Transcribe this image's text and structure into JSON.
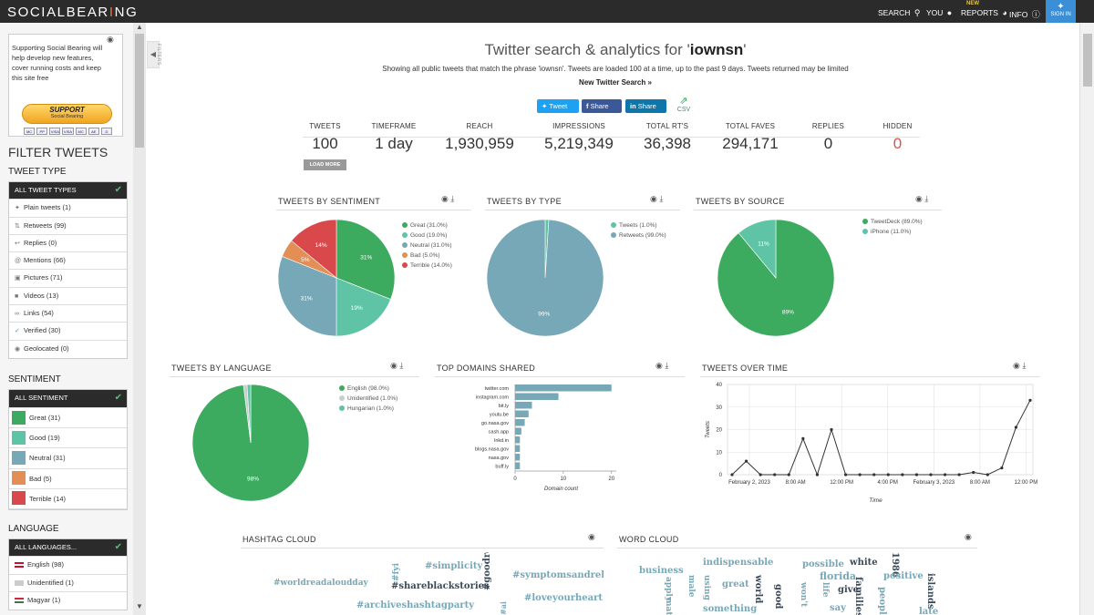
{
  "topbar": {
    "logo_pre": "SOCIALBEAR",
    "logo_accent": "I",
    "logo_post": "NG",
    "search": "SEARCH",
    "you": "YOU",
    "reports": "REPORTS",
    "reports_badge": "NEW",
    "info": "INFO",
    "signin": "SIGN IN"
  },
  "sidebar": {
    "support_text": "Supporting Social Bearing will help develop new features, cover running costs and keep this site free",
    "support_btn": "SUPPORT",
    "support_sub": "Social Bearing",
    "cards": [
      "MC",
      "PP",
      "VISA",
      "VISA",
      "MC",
      "AE",
      "D"
    ],
    "filter_title": "FILTER TWEETS",
    "tweet_type_title": "TWEET TYPE",
    "tweet_types": [
      {
        "label": "ALL TWEET TYPES",
        "icon": "check"
      },
      {
        "label": "Plain tweets (1)",
        "icon": "bird"
      },
      {
        "label": "Retweets (99)",
        "icon": "retweet"
      },
      {
        "label": "Replies (0)",
        "icon": "reply"
      },
      {
        "label": "Mentions (66)",
        "icon": "at"
      },
      {
        "label": "Pictures (71)",
        "icon": "picture"
      },
      {
        "label": "Videos (13)",
        "icon": "video"
      },
      {
        "label": "Links (54)",
        "icon": "link"
      },
      {
        "label": "Verified (30)",
        "icon": "verified"
      },
      {
        "label": "Geolocated (0)",
        "icon": "pin"
      }
    ],
    "sentiment_title": "SENTIMENT",
    "sentiments": [
      {
        "label": "ALL SENTIMENT"
      },
      {
        "label": "Great (31)",
        "color": "#3cab5f"
      },
      {
        "label": "Good (19)",
        "color": "#5fc4a6"
      },
      {
        "label": "Neutral (31)",
        "color": "#77a8b8"
      },
      {
        "label": "Bad (5)",
        "color": "#e38e55"
      },
      {
        "label": "Terrible (14)",
        "color": "#d9484a"
      }
    ],
    "language_title": "LANGUAGE",
    "languages": [
      {
        "label": "ALL LANGUAGES..."
      },
      {
        "label": "English (98)"
      },
      {
        "label": "Unidentified (1)"
      },
      {
        "label": "Magyar (1)"
      }
    ],
    "filters_tab": "FILTERS"
  },
  "header": {
    "title_pre": "Twitter search & analytics for '",
    "query": "iownsn",
    "title_post": "'",
    "description": "Showing all public tweets that match the phrase 'iownsn'. Tweets are loaded 100 at a time, up to the past 9 days. Tweets returned may be limited",
    "new_search": "New Twitter Search »",
    "share_tweet": "Tweet",
    "share_fb": "Share",
    "share_li": "Share",
    "csv": "CSV"
  },
  "stats": [
    {
      "label": "TWEETS",
      "value": "100"
    },
    {
      "label": "TIMEFRAME",
      "value": "1 day"
    },
    {
      "label": "REACH",
      "value": "1,930,959"
    },
    {
      "label": "IMPRESSIONS",
      "value": "5,219,349"
    },
    {
      "label": "TOTAL RT'S",
      "value": "36,398"
    },
    {
      "label": "TOTAL FAVES",
      "value": "294,171"
    },
    {
      "label": "REPLIES",
      "value": "0"
    },
    {
      "label": "HIDDEN",
      "value": "0"
    }
  ],
  "load_more": "LOAD MORE",
  "panels": {
    "sentiment": "TWEETS BY SENTIMENT",
    "type": "TWEETS BY TYPE",
    "source": "TWEETS BY SOURCE",
    "language": "TWEETS BY LANGUAGE",
    "domains": "TOP DOMAINS SHARED",
    "time": "TWEETS OVER TIME",
    "hashtag": "HASHTAG CLOUD",
    "word": "WORD CLOUD"
  },
  "chart_data": [
    {
      "type": "pie",
      "title": "TWEETS BY SENTIMENT",
      "labels": [
        "Great",
        "Good",
        "Neutral",
        "Bad",
        "Terrible"
      ],
      "values": [
        31,
        19,
        31,
        5,
        14
      ],
      "legend": [
        "Great (31.0%)",
        "Good (19.0%)",
        "Neutral (31.0%)",
        "Bad (5.0%)",
        "Terrible (14.0%)"
      ],
      "slice_labels": [
        "31%",
        "19%",
        "31%",
        "5%",
        "14%"
      ],
      "colors": [
        "#3cab5f",
        "#5fc4a6",
        "#77a8b8",
        "#e38e55",
        "#d9484a"
      ]
    },
    {
      "type": "pie",
      "title": "TWEETS BY TYPE",
      "labels": [
        "Tweets",
        "Retweets"
      ],
      "values": [
        1,
        99
      ],
      "legend": [
        "Tweets (1.0%)",
        "Retweets (99.0%)"
      ],
      "slice_labels": [
        "",
        "99%"
      ],
      "colors": [
        "#5fc4a6",
        "#77a8b8"
      ]
    },
    {
      "type": "pie",
      "title": "TWEETS BY SOURCE",
      "labels": [
        "TweetDeck",
        "iPhone"
      ],
      "values": [
        89,
        11
      ],
      "legend": [
        "TweetDeck (89.0%)",
        "iPhone (11.0%)"
      ],
      "slice_labels": [
        "89%",
        "11%"
      ],
      "colors": [
        "#3cab5f",
        "#5fc4a6"
      ]
    },
    {
      "type": "pie",
      "title": "TWEETS BY LANGUAGE",
      "labels": [
        "English",
        "Unidentified",
        "Hungarian"
      ],
      "values": [
        98,
        1,
        1
      ],
      "legend": [
        "English (98.0%)",
        "Unidentified (1.0%)",
        "Hungarian (1.0%)"
      ],
      "slice_labels": [
        "98%",
        "",
        ""
      ],
      "colors": [
        "#3cab5f",
        "#cccccc",
        "#5fc4a6"
      ]
    },
    {
      "type": "bar",
      "title": "TOP DOMAINS SHARED",
      "orientation": "horizontal",
      "categories": [
        "twitter.com",
        "instagram.com",
        "bit.ly",
        "youtu.be",
        "go.nasa.gov",
        "cash.app",
        "lnkd.in",
        "blogs.nasa.gov",
        "nasa.gov",
        "buff.ly"
      ],
      "values": [
        20,
        9,
        3.5,
        2.8,
        2,
        1.3,
        1,
        1,
        1,
        1
      ],
      "xlabel": "Domain count",
      "xticks": [
        0,
        10,
        20
      ],
      "xlim": [
        0,
        21
      ],
      "color": "#77a8b8"
    },
    {
      "type": "line",
      "title": "TWEETS OVER TIME",
      "xlabel": "Time",
      "ylabel": "Tweets",
      "ylim": [
        0,
        40
      ],
      "yticks": [
        0,
        10,
        20,
        30,
        40
      ],
      "xtick_labels": [
        "February 2, 2023",
        "8:00 AM",
        "12:00 PM",
        "4:00 PM",
        "February 3, 2023",
        "8:00 AM",
        "12:00 PM"
      ],
      "values": [
        0,
        6,
        0,
        0,
        0,
        16,
        0,
        20,
        0,
        0,
        0,
        0,
        0,
        0,
        0,
        0,
        0,
        1,
        0,
        3,
        21,
        33
      ],
      "color": "#333333"
    }
  ],
  "hashtag_cloud": [
    {
      "text": "#simplicity",
      "color": "#77a8b8",
      "size": 10,
      "rot": 0
    },
    {
      "text": "#goodreads",
      "color": "#3a4a5a",
      "size": 10,
      "rot": -90
    },
    {
      "text": "#fyi",
      "color": "#77a8b8",
      "size": 9,
      "rot": -90
    },
    {
      "text": "#symptomsandrelief",
      "color": "#77a8b8",
      "size": 10,
      "rot": 0
    },
    {
      "text": "#worldreadaloudday",
      "color": "#77a8b8",
      "size": 9,
      "rot": 0
    },
    {
      "text": "#shareblackstories",
      "color": "#3a4a5a",
      "size": 10,
      "rot": 0
    },
    {
      "text": "#loveyourheart",
      "color": "#77a8b8",
      "size": 10,
      "rot": 0
    },
    {
      "text": "#archiveshashtagparty",
      "color": "#77a8b8",
      "size": 10,
      "rot": 0
    },
    {
      "text": "#ai",
      "color": "#77a8b8",
      "size": 8,
      "rot": -90
    }
  ],
  "word_cloud": [
    {
      "text": "indispensable",
      "color": "#77a8b8",
      "size": 10,
      "rot": 0
    },
    {
      "text": "possible",
      "color": "#77a8b8",
      "size": 10,
      "rot": 0
    },
    {
      "text": "white",
      "color": "#3a4a5a",
      "size": 10,
      "rot": 0
    },
    {
      "text": "1986",
      "color": "#3a4a5a",
      "size": 10,
      "rot": 90
    },
    {
      "text": "business",
      "color": "#77a8b8",
      "size": 10,
      "rot": 0
    },
    {
      "text": "florida",
      "color": "#77a8b8",
      "size": 11,
      "rot": 0
    },
    {
      "text": "positive",
      "color": "#77a8b8",
      "size": 10,
      "rot": 0
    },
    {
      "text": "apply",
      "color": "#77a8b8",
      "size": 9,
      "rot": 90
    },
    {
      "text": "male",
      "color": "#77a8b8",
      "size": 9,
      "rot": 90
    },
    {
      "text": "using",
      "color": "#77a8b8",
      "size": 9,
      "rot": 90
    },
    {
      "text": "great",
      "color": "#77a8b8",
      "size": 10,
      "rot": 0
    },
    {
      "text": "world",
      "color": "#3a4a5a",
      "size": 10,
      "rot": 90
    },
    {
      "text": "good",
      "color": "#3a4a5a",
      "size": 10,
      "rot": 90
    },
    {
      "text": "won't",
      "color": "#77a8b8",
      "size": 9,
      "rot": 90
    },
    {
      "text": "life",
      "color": "#77a8b8",
      "size": 9,
      "rot": 90
    },
    {
      "text": "give",
      "color": "#3a4a5a",
      "size": 10,
      "rot": 0
    },
    {
      "text": "families",
      "color": "#3a4a5a",
      "size": 10,
      "rot": 90
    },
    {
      "text": "people",
      "color": "#77a8b8",
      "size": 10,
      "rot": 90
    },
    {
      "text": "islands",
      "color": "#3a4a5a",
      "size": 10,
      "rot": 90
    },
    {
      "text": "math",
      "color": "#77a8b8",
      "size": 9,
      "rot": 90
    },
    {
      "text": "something",
      "color": "#77a8b8",
      "size": 10,
      "rot": 0
    },
    {
      "text": "say",
      "color": "#77a8b8",
      "size": 10,
      "rot": 0
    },
    {
      "text": "late",
      "color": "#77a8b8",
      "size": 10,
      "rot": 0
    }
  ]
}
